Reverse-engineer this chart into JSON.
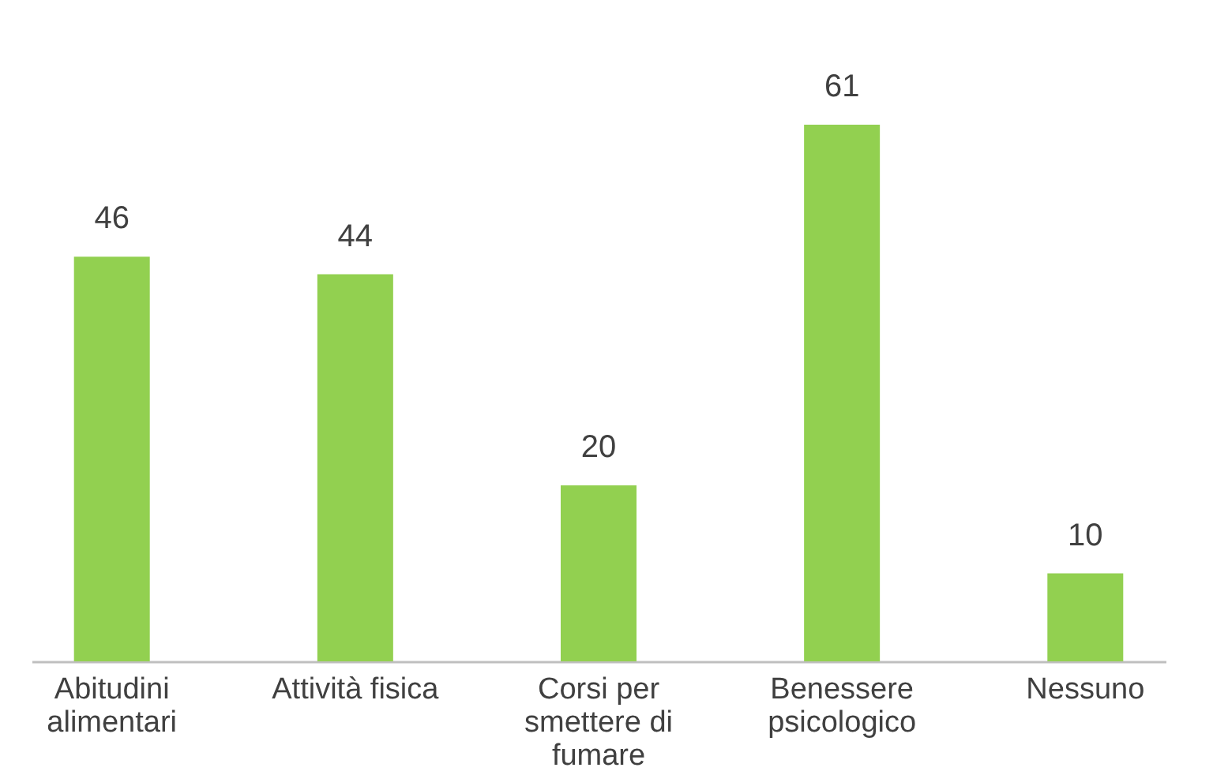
{
  "chart_data": {
    "type": "bar",
    "categories": [
      "Abitudini alimentari",
      "Attività fisica",
      "Corsi per smettere di fumare",
      "Benessere psicologico",
      "Nessuno"
    ],
    "values": [
      46,
      44,
      20,
      61,
      10
    ],
    "color": "#92d050",
    "data_labels": true,
    "grid": false
  }
}
